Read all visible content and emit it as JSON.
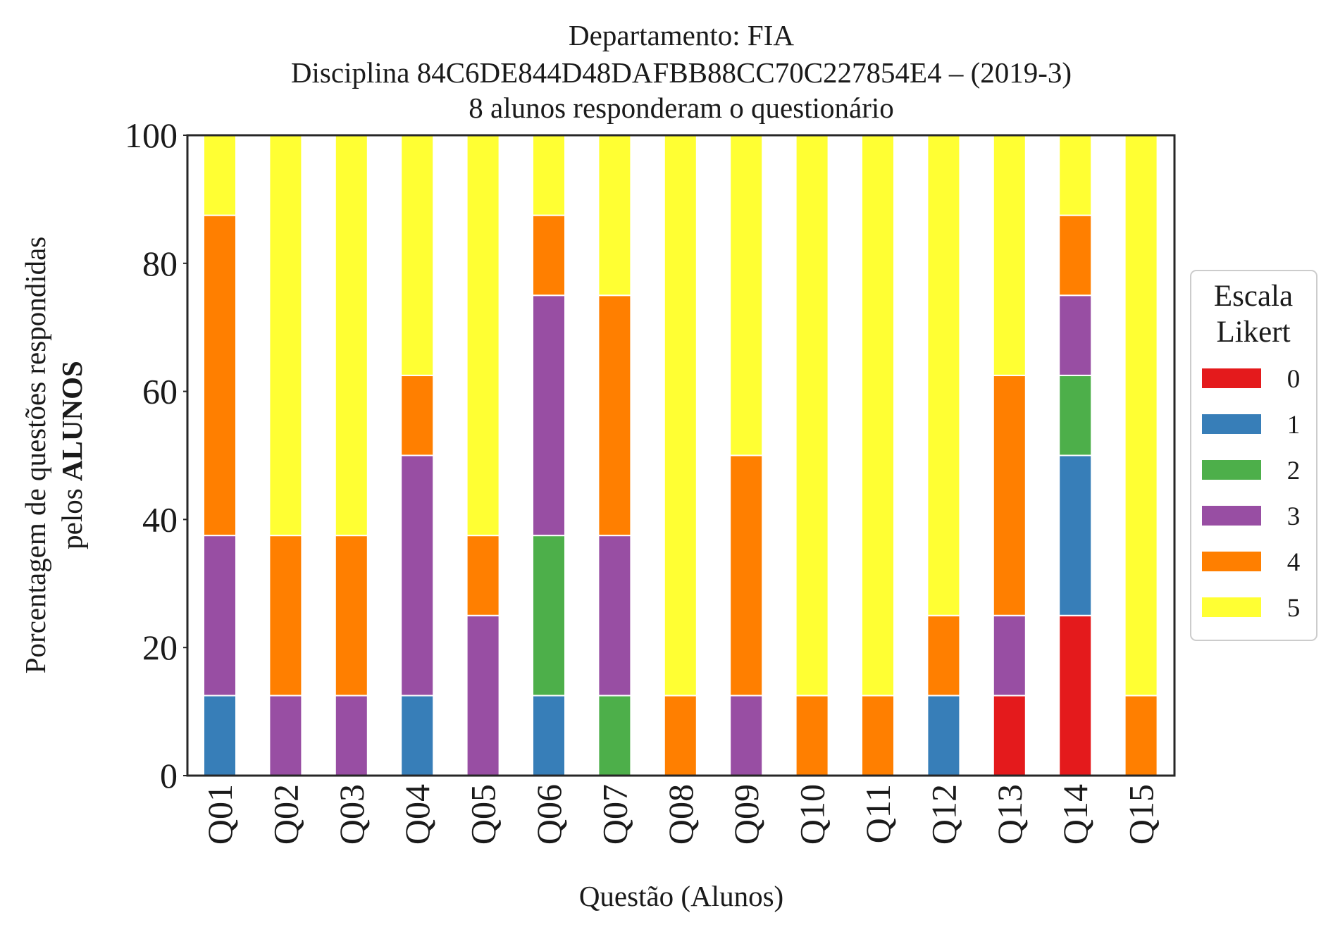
{
  "chart_data": {
    "type": "bar",
    "stacked": true,
    "title_lines": [
      "Departamento: FIA",
      "Disciplina 84C6DE844D48DAFBB88CC70C227854E4 – (2019-3)",
      "8 alunos responderam o questionário"
    ],
    "xlabel": "Questão (Alunos)",
    "ylabel_line1": "Porcentagem de questões respondidas",
    "ylabel_line2_prefix": "pelos ",
    "ylabel_line2_bold": "ALUNOS",
    "ylim": [
      0,
      100
    ],
    "yticks": [
      "0",
      "20",
      "40",
      "60",
      "80",
      "100"
    ],
    "grid": false,
    "legend_placement": "center-right outside",
    "legend_title_lines": [
      "Escala",
      "Likert"
    ],
    "categories": [
      "Q01",
      "Q02",
      "Q03",
      "Q04",
      "Q05",
      "Q06",
      "Q07",
      "Q08",
      "Q09",
      "Q10",
      "Q11",
      "Q12",
      "Q13",
      "Q14",
      "Q15"
    ],
    "series": [
      {
        "name": "0",
        "color": "#e41a1c",
        "values": [
          0,
          0,
          0,
          0,
          0,
          0,
          0,
          0,
          0,
          0,
          0,
          0,
          12.5,
          25,
          0
        ]
      },
      {
        "name": "1",
        "color": "#377eb8",
        "values": [
          12.5,
          0,
          0,
          12.5,
          0,
          12.5,
          0,
          0,
          0,
          0,
          0,
          12.5,
          0,
          25,
          0
        ]
      },
      {
        "name": "2",
        "color": "#4daf4a",
        "values": [
          0,
          0,
          0,
          0,
          0,
          25,
          12.5,
          0,
          0,
          0,
          0,
          0,
          0,
          12.5,
          0
        ]
      },
      {
        "name": "3",
        "color": "#984ea3",
        "values": [
          25,
          12.5,
          12.5,
          37.5,
          25,
          37.5,
          25,
          0,
          12.5,
          0,
          0,
          0,
          12.5,
          12.5,
          0
        ]
      },
      {
        "name": "4",
        "color": "#ff7f00",
        "values": [
          50,
          25,
          25,
          12.5,
          12.5,
          12.5,
          37.5,
          12.5,
          37.5,
          12.5,
          12.5,
          12.5,
          37.5,
          12.5,
          12.5
        ]
      },
      {
        "name": "5",
        "color": "#ffff33",
        "values": [
          12.5,
          62.5,
          62.5,
          37.5,
          62.5,
          12.5,
          25,
          87.5,
          50,
          87.5,
          87.5,
          75,
          37.5,
          12.5,
          87.5
        ]
      }
    ]
  }
}
